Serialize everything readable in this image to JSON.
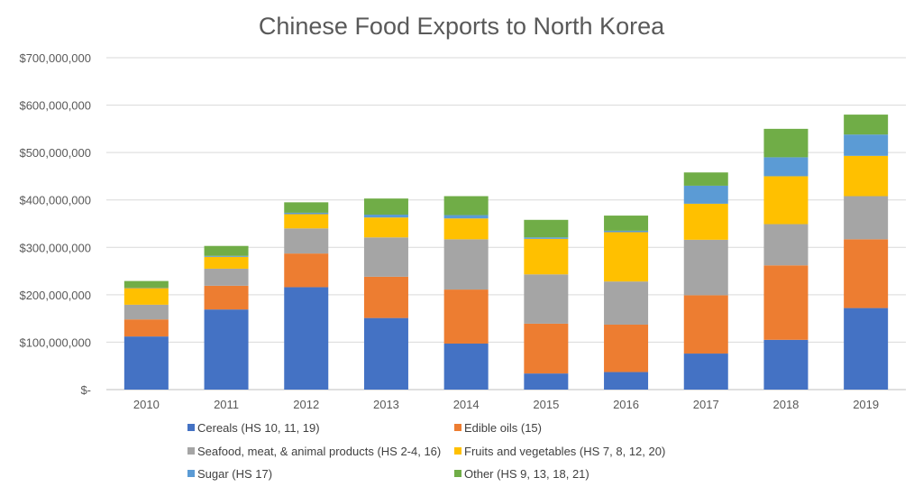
{
  "chart_data": {
    "type": "bar",
    "stacked": true,
    "title": "Chinese Food Exports to North Korea",
    "xlabel": "",
    "ylabel": "",
    "ylim": [
      0,
      700000000
    ],
    "y_ticks": [
      {
        "value": 0,
        "label": "$-"
      },
      {
        "value": 100000000,
        "label": "$100,000,000"
      },
      {
        "value": 200000000,
        "label": "$200,000,000"
      },
      {
        "value": 300000000,
        "label": "$300,000,000"
      },
      {
        "value": 400000000,
        "label": "$400,000,000"
      },
      {
        "value": 500000000,
        "label": "$500,000,000"
      },
      {
        "value": 600000000,
        "label": "$600,000,000"
      },
      {
        "value": 700000000,
        "label": "$700,000,000"
      }
    ],
    "grid": true,
    "legend_position": "bottom",
    "categories": [
      "2010",
      "2011",
      "2012",
      "2013",
      "2014",
      "2015",
      "2016",
      "2017",
      "2018",
      "2019"
    ],
    "series": [
      {
        "name": "Cereals (HS 10, 11, 19)",
        "color": "#4472C4",
        "values": [
          112000000,
          169000000,
          216000000,
          151000000,
          97000000,
          34000000,
          37000000,
          76000000,
          105000000,
          172000000
        ]
      },
      {
        "name": "Edible oils (15)",
        "color": "#ED7D31",
        "values": [
          36000000,
          50000000,
          71000000,
          87000000,
          114000000,
          105000000,
          100000000,
          123000000,
          157000000,
          145000000
        ]
      },
      {
        "name": "Seafood, meat, & animal products (HS 2-4, 16)",
        "color": "#A5A5A5",
        "values": [
          31000000,
          36000000,
          53000000,
          83000000,
          106000000,
          104000000,
          91000000,
          117000000,
          87000000,
          91000000
        ]
      },
      {
        "name": "Fruits and vegetables (HS 7, 8, 12, 20)",
        "color": "#FFC000",
        "values": [
          35000000,
          25000000,
          30000000,
          42000000,
          44000000,
          75000000,
          104000000,
          76000000,
          101000000,
          85000000
        ]
      },
      {
        "name": "Sugar (HS 17)",
        "color": "#5B9BD5",
        "values": [
          1000000,
          2000000,
          3000000,
          6000000,
          7000000,
          3000000,
          3000000,
          38000000,
          40000000,
          45000000
        ]
      },
      {
        "name": "Other (HS 9, 13, 18, 21)",
        "color": "#70AD47",
        "values": [
          14000000,
          21000000,
          22000000,
          34000000,
          40000000,
          37000000,
          32000000,
          28000000,
          60000000,
          42000000
        ]
      }
    ]
  }
}
